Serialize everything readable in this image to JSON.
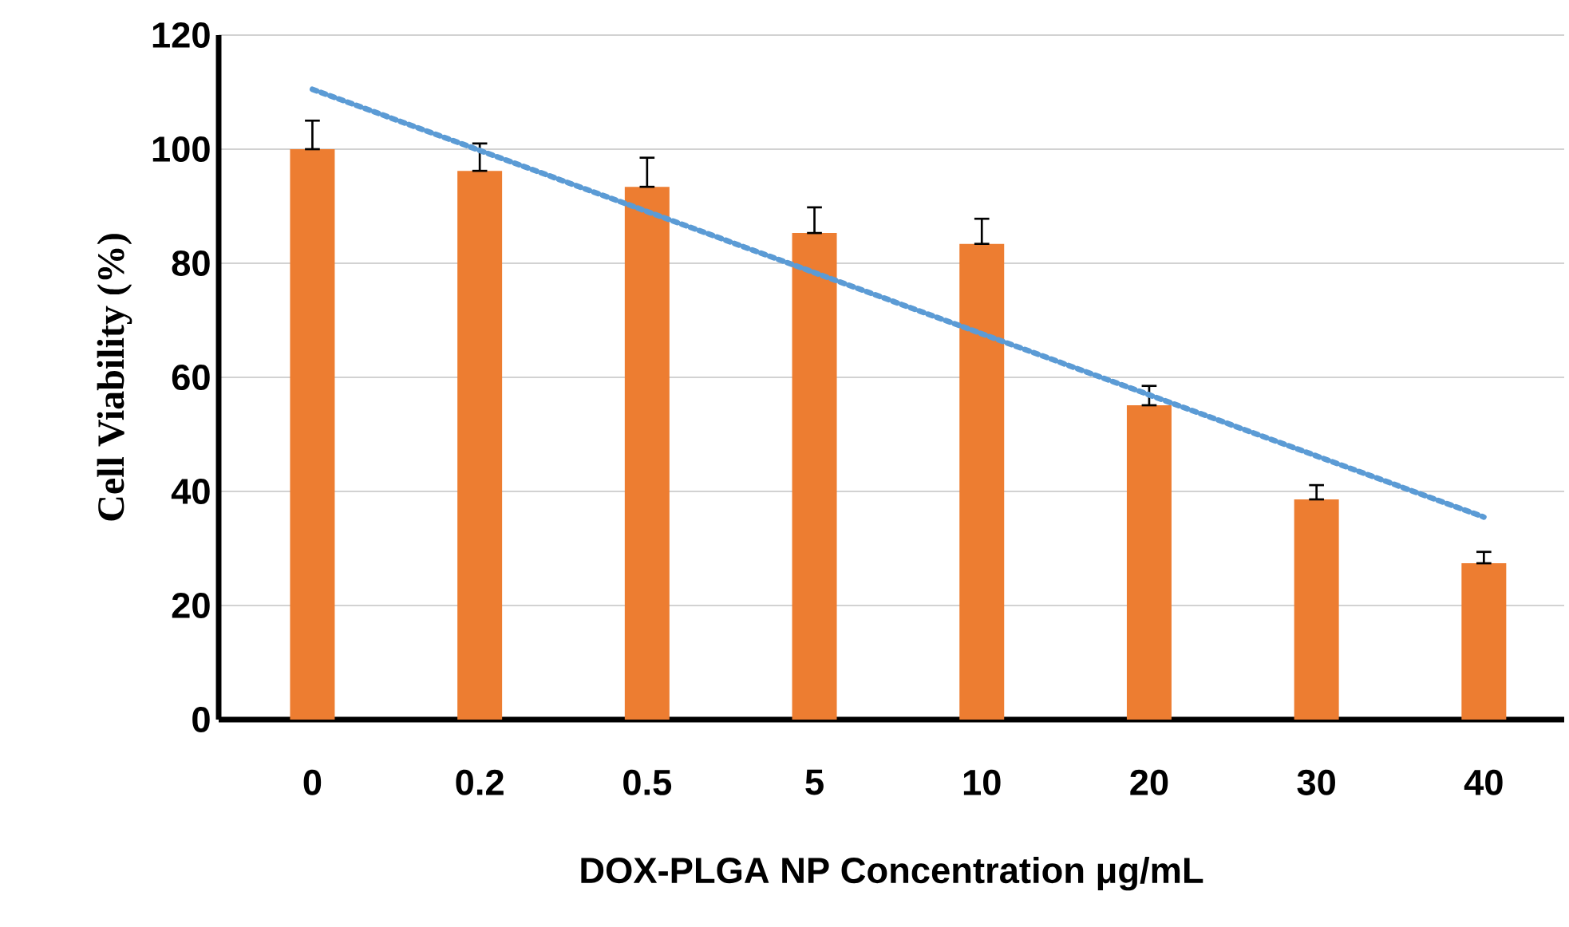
{
  "chart_data": {
    "type": "bar",
    "xlabel": "DOX-PLGA NP Concentration μg/mL",
    "ylabel": "Cell Viability (%)",
    "categories": [
      "0",
      "0.2",
      "0.5",
      "5",
      "10",
      "20",
      "30",
      "40"
    ],
    "series": [
      {
        "color": "#ed7d31",
        "values": [
          100,
          96.2,
          93.4,
          85.3,
          83.4,
          55.1,
          38.6,
          27.4
        ],
        "errors": [
          [
            100,
            105
          ],
          [
            96.2,
            101
          ],
          [
            93.4,
            98.5
          ],
          [
            85.3,
            89.8
          ],
          [
            83.4,
            87.8
          ],
          [
            55.1,
            58.5
          ],
          [
            38.6,
            41.1
          ],
          [
            27.4,
            29.4
          ]
        ]
      },
      {
        "type": "line",
        "color": "#5b9bd5",
        "line_style": "dotted",
        "marker": "none",
        "x": [
          "0",
          "40"
        ],
        "values": [
          110.5,
          35.5
        ]
      }
    ],
    "ylim": [
      0,
      120
    ],
    "yticks": [
      0,
      20,
      40,
      60,
      80,
      100,
      120
    ],
    "grid": "y"
  }
}
